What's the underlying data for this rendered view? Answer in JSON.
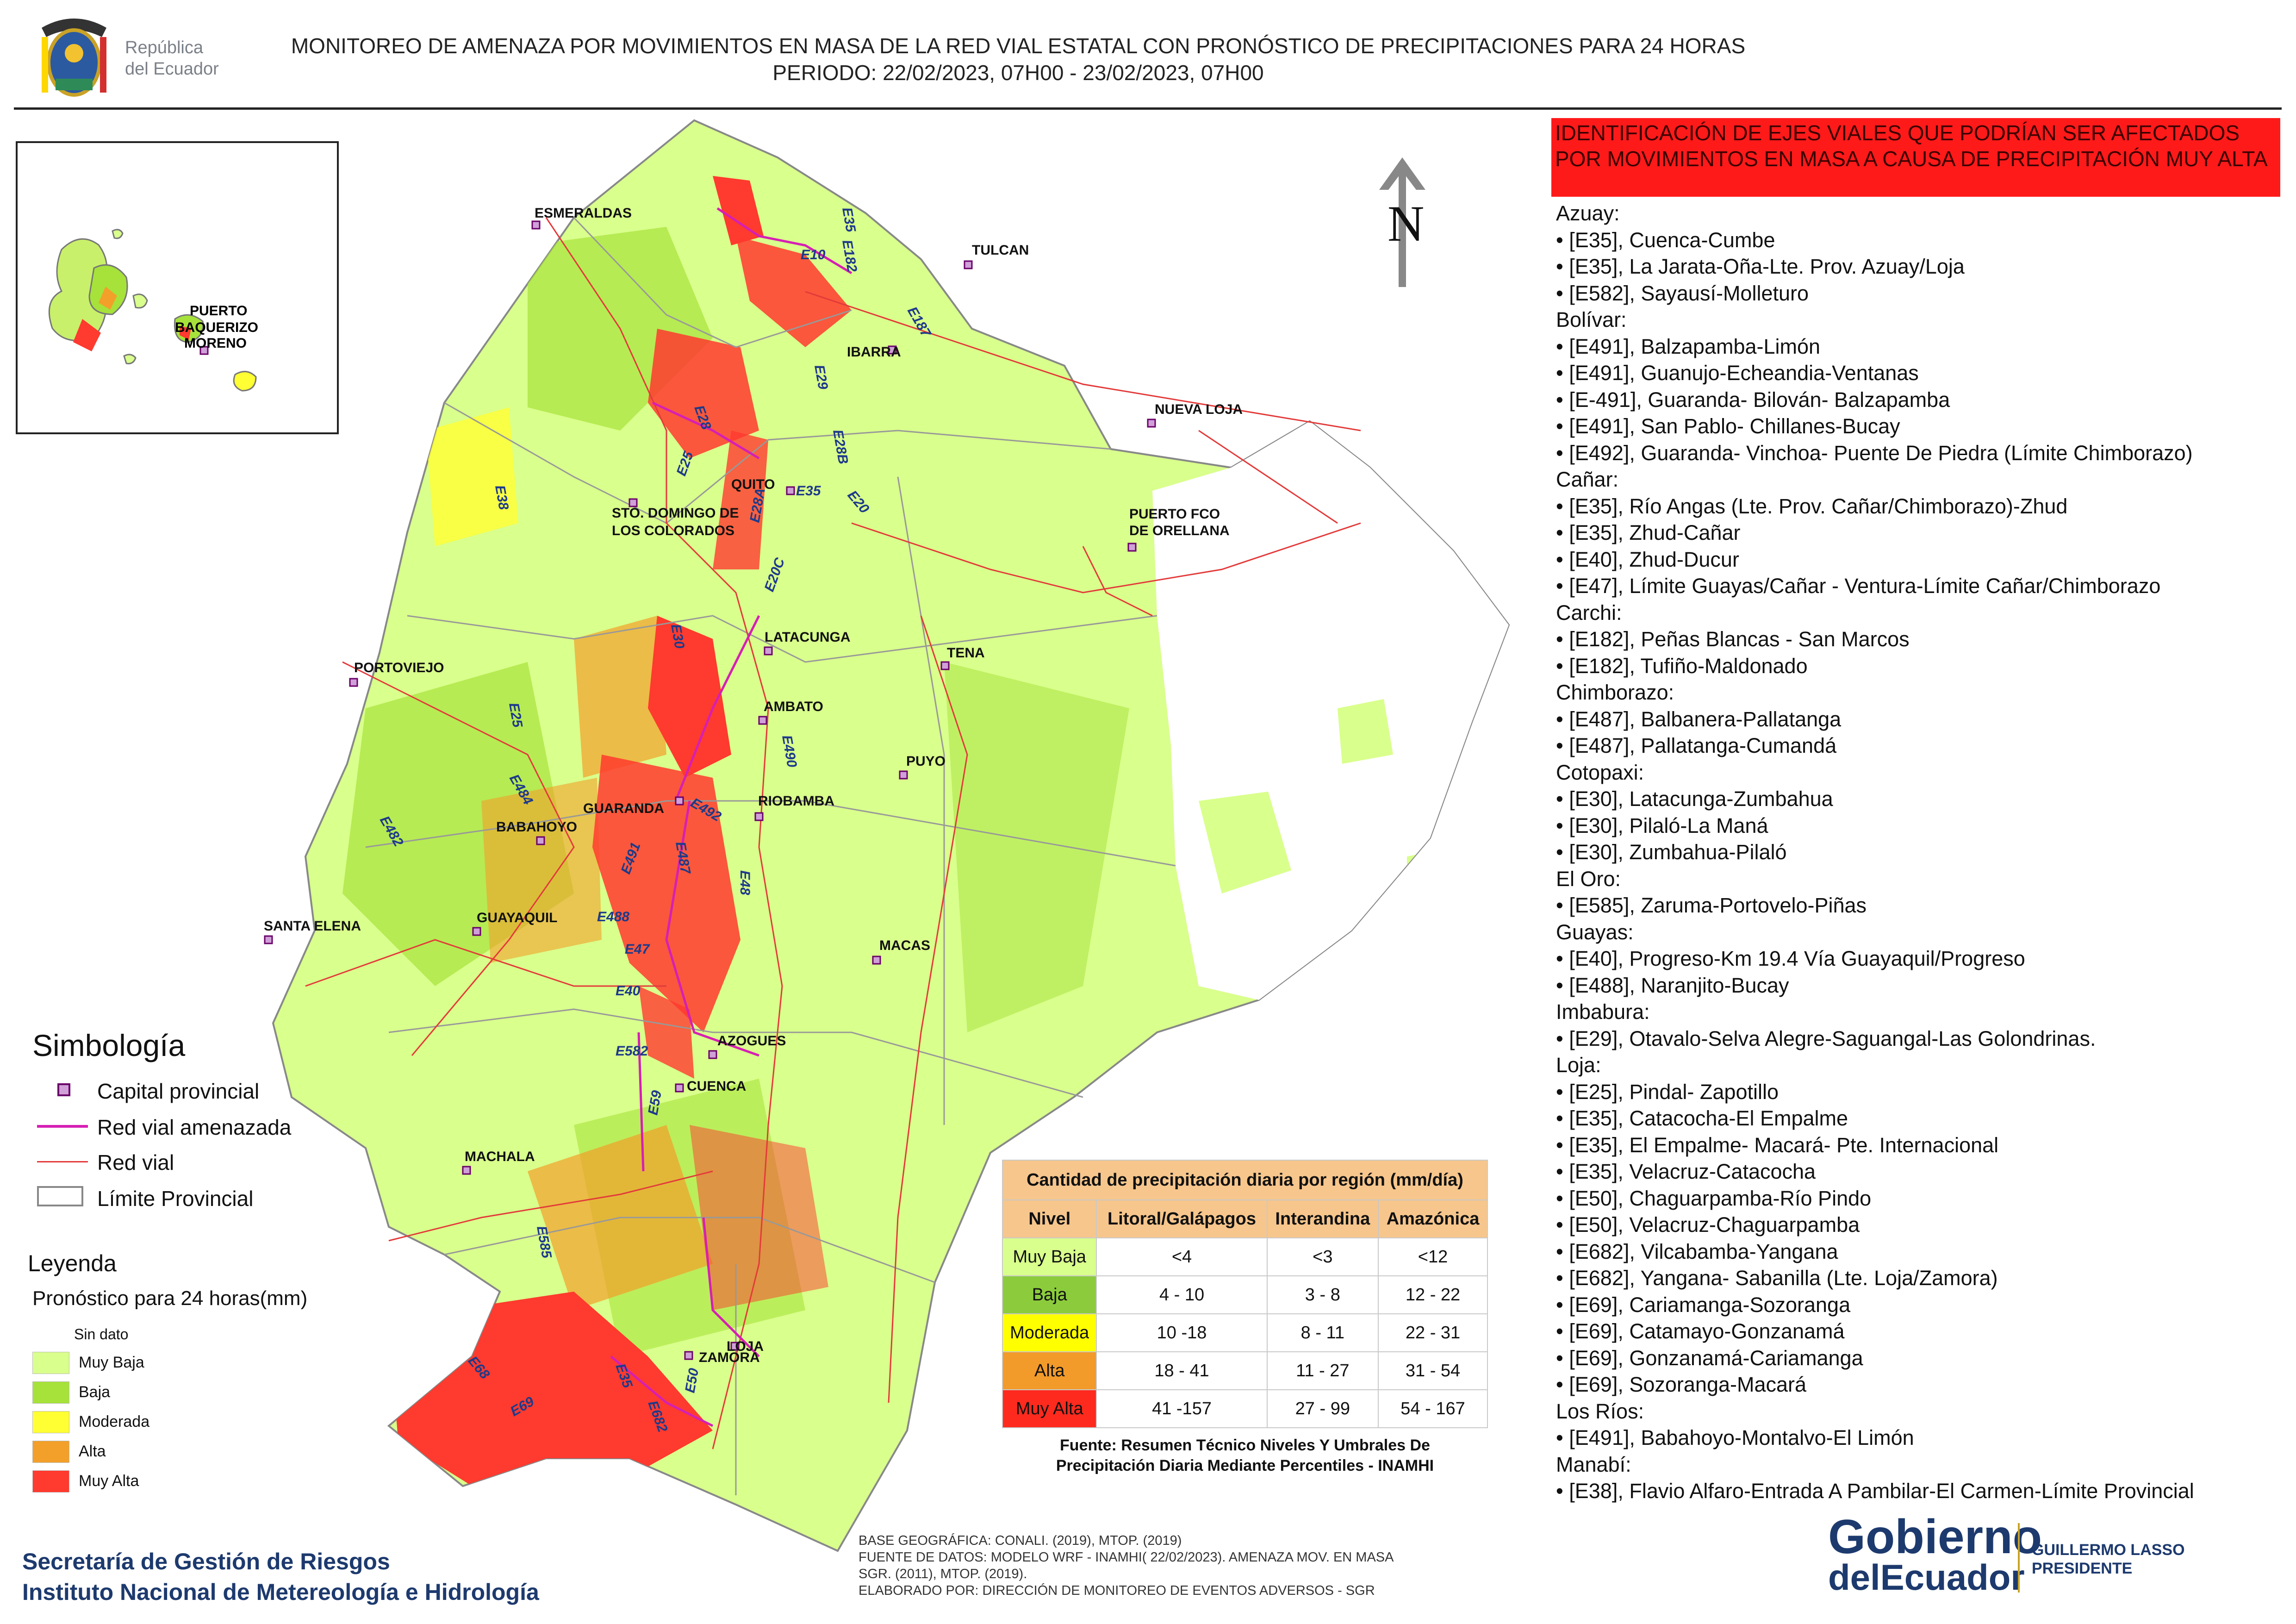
{
  "header": {
    "title_line1": "MONITOREO DE AMENAZA POR MOVIMIENTOS EN MASA DE LA RED VIAL  ESTATAL  CON PRONÓSTICO  DE  PRECIPITACIONES PARA 24 HORAS",
    "title_line2": "PERIODO: 22/02/2023, 07H00 - 23/02/2023, 07H00",
    "logo_text_1": "República",
    "logo_text_2": "del Ecuador"
  },
  "map": {
    "north_label": "N",
    "inset_city_1": "PUERTO",
    "inset_city_2": "BAQUERIZO",
    "inset_city_3": "MORENO",
    "cities": [
      "ESMERALDAS",
      "TULCAN",
      "IBARRA",
      "NUEVA LOJA",
      "QUITO",
      "STO. DOMINGO DE",
      "LOS COLORADOS",
      "PUERTO FCO",
      "DE ORELLANA",
      "LATACUNGA",
      "TENA",
      "PORTOVIEJO",
      "AMBATO",
      "PUYO",
      "GUARANDA",
      "RIOBAMBA",
      "BABAHOYO",
      "SANTA ELENA",
      "GUAYAQUIL",
      "MACAS",
      "AZOGUES",
      "CUENCA",
      "MACHALA",
      "LOJA",
      "ZAMORA"
    ],
    "roads": [
      "E10",
      "E182",
      "E187",
      "E35",
      "E29",
      "E28",
      "E35",
      "E28B",
      "E25",
      "E20",
      "E28A",
      "E20C",
      "E38",
      "E30",
      "E25",
      "E490",
      "E492",
      "E484",
      "E482",
      "E491",
      "E487",
      "E48",
      "E488",
      "E47",
      "E40",
      "E582",
      "E59",
      "E585",
      "E35",
      "E50",
      "E68",
      "E69",
      "E682"
    ]
  },
  "symbology": {
    "title": "Simbología",
    "items": [
      {
        "label": "Capital provincial",
        "icon": "square-marker-icon"
      },
      {
        "label": "Red vial amenazada",
        "color": "#d61fb4"
      },
      {
        "label": "Red vial",
        "color": "#e33a3a"
      },
      {
        "label": "Límite Provincial",
        "color": "#888888"
      }
    ]
  },
  "legend": {
    "title": "Leyenda",
    "subtitle": "Pronóstico para 24 horas(mm)",
    "ranges": [
      {
        "label": "Sin dato",
        "color": "#ffffff"
      },
      {
        "label": " Muy Baja",
        "color": "#d9ff8c"
      },
      {
        "label": "Baja",
        "color": "#a6e23a"
      },
      {
        "label": "Moderada",
        "color": "#ffff33"
      },
      {
        "label": "Alta",
        "color": "#f2a02a"
      },
      {
        "label": "Muy Alta",
        "color": "#ff3a2e"
      }
    ]
  },
  "precip_table": {
    "caption": "Cantidad de precipitación diaria por región (mm/día)",
    "headers": [
      "Nivel",
      "Litoral/Galápagos",
      "Interandina",
      "Amazónica"
    ],
    "rows": [
      {
        "level": "Muy Baja",
        "color": "#d9ff8c",
        "vals": [
          "<4",
          "<3",
          "<12"
        ]
      },
      {
        "level": "Baja",
        "color": "#8ccc3c",
        "vals": [
          "4 - 10",
          "3 - 8",
          "12 - 22"
        ]
      },
      {
        "level": "Moderada",
        "color": "#ffff00",
        "vals": [
          "10 -18",
          "8 - 11",
          "22 - 31"
        ]
      },
      {
        "level": "Alta",
        "color": "#f29a2a",
        "vals": [
          "18 - 41",
          "11 - 27",
          "31 - 54"
        ]
      },
      {
        "level": "Muy Alta",
        "color": "#ff2a1e",
        "vals": [
          "41 -157",
          "27 - 99",
          "54 - 167"
        ]
      }
    ],
    "source_line1": "Fuente: Resumen Técnico Niveles Y Umbrales De",
    "source_line2": "Precipitación Diaria Mediante Percentiles - INAMHI"
  },
  "roads_panel": {
    "banner": "IDENTIFICACIÓN DE EJES VIALES QUE PODRÍAN SER AFECTADOS POR MOVIMIENTOS EN MASA A CAUSA DE PRECIPITACIÓN MUY ALTA",
    "lines": [
      "Azuay:",
      "• [E35], Cuenca-Cumbe",
      "• [E35], La Jarata-Oña-Lte. Prov. Azuay/Loja",
      "• [E582], Sayausí-Molleturo",
      "Bolívar:",
      "• [E491], Balzapamba-Limón",
      "• [E491], Guanujo-Echeandia-Ventanas",
      "• [E-491], Guaranda- Bilován- Balzapamba",
      "• [E491], San Pablo- Chillanes-Bucay",
      "• [E492], Guaranda- Vinchoa- Puente De Piedra (Límite Chimborazo)",
      "Cañar:",
      "• [E35], Río Angas (Lte. Prov. Cañar/Chimborazo)-Zhud",
      "• [E35], Zhud-Cañar",
      "• [E40], Zhud-Ducur",
      "• [E47], Límite Guayas/Cañar - Ventura-Límite Cañar/Chimborazo",
      "Carchi:",
      "• [E182], Peñas Blancas - San Marcos",
      "• [E182], Tufiño-Maldonado",
      "Chimborazo:",
      "• [E487], Balbanera-Pallatanga",
      "• [E487], Pallatanga-Cumandá",
      "Cotopaxi:",
      "• [E30], Latacunga-Zumbahua",
      "• [E30], Pilaló-La Maná",
      "• [E30], Zumbahua-Pilaló",
      "El Oro:",
      "• [E585], Zaruma-Portovelo-Piñas",
      "Guayas:",
      "• [E40], Progreso-Km 19.4 Vía Guayaquil/Progreso",
      "• [E488], Naranjito-Bucay",
      "Imbabura:",
      "• [E29], Otavalo-Selva Alegre-Saguangal-Las Golondrinas.",
      "Loja:",
      "• [E25], Pindal- Zapotillo",
      "• [E35], Catacocha-El Empalme",
      "• [E35], El Empalme- Macará- Pte. Internacional",
      "• [E35], Velacruz-Catacocha",
      "• [E50], Chaguarpamba-Río Pindo",
      "• [E50], Velacruz-Chaguarpamba",
      "• [E682], Vilcabamba-Yangana",
      "• [E682], Yangana- Sabanilla (Lte. Loja/Zamora)",
      "• [E69], Cariamanga-Sozoranga",
      "• [E69], Catamayo-Gonzanamá",
      "• [E69], Gonzanamá-Cariamanga",
      "• [E69], Sozoranga-Macará",
      "Los Ríos:",
      "• [E491], Babahoyo-Montalvo-El Limón",
      "Manabí:",
      "• [E38], Flavio Alfaro-Entrada A Pambilar-El Carmen-Límite Provincial"
    ]
  },
  "footer": {
    "org1": "Secretaría de Gestión de Riesgos",
    "org2": "Instituto Nacional de Metereología e Hidrología",
    "notes": [
      "BASE GEOGRÁFICA: CONALI. (2019), MTOP. (2019)",
      "FUENTE DE DATOS: MODELO WRF - INAMHI( 22/02/2023).  AMENAZA MOV. EN MASA",
      "SGR. (2011), MTOP. (2019).",
      "ELABORADO POR: DIRECCIÓN DE MONITOREO DE EVENTOS ADVERSOS - SGR"
    ],
    "gob1": "Gobierno",
    "gob2": "delEcuador",
    "pres1": "GUILLERMO LASSO",
    "pres2": "PRESIDENTE"
  }
}
